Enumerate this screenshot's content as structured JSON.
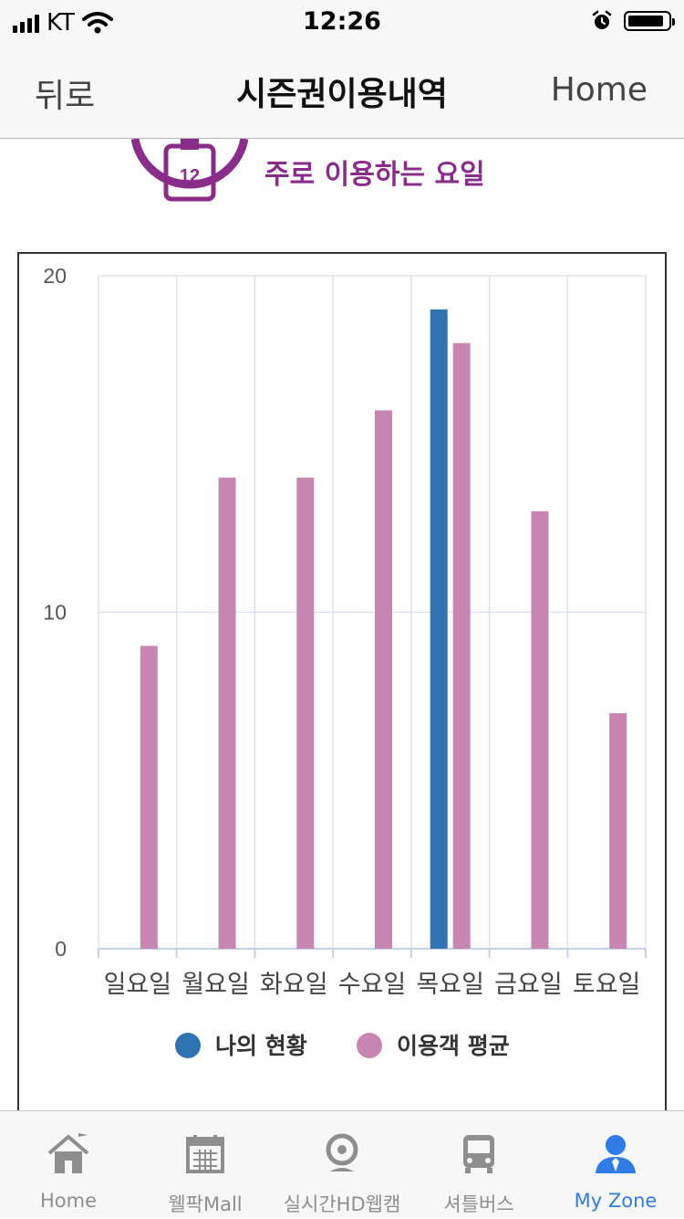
{
  "status_bar": {
    "carrier": "KT",
    "time": "12:26"
  },
  "nav": {
    "back": "뒤로",
    "title": "시즌권이용내역",
    "home": "Home"
  },
  "section": {
    "title": "주로 이용하는 요일",
    "calendar_day": "12",
    "accent_color": "#8a2c8a"
  },
  "chart_data": {
    "type": "bar",
    "categories": [
      "일요일",
      "월요일",
      "화요일",
      "수요일",
      "목요일",
      "금요일",
      "토요일"
    ],
    "series": [
      {
        "name": "나의 현황",
        "color": "#2f73b3",
        "values": [
          0,
          0,
          0,
          0,
          19,
          0,
          0
        ]
      },
      {
        "name": "이용객 평균",
        "color": "#c786b1",
        "values": [
          9,
          14,
          14,
          16,
          18,
          13,
          7
        ]
      }
    ],
    "yticks": [
      "20",
      "10",
      "0"
    ],
    "ylim": [
      0,
      20
    ],
    "grid": true,
    "legend_position": "bottom"
  },
  "tabbar": {
    "items": [
      {
        "label": "Home",
        "icon": "home-icon"
      },
      {
        "label": "웰팍Mall",
        "icon": "calendar-icon"
      },
      {
        "label": "실시간HD웹캠",
        "icon": "webcam-icon"
      },
      {
        "label": "셔틀버스",
        "icon": "bus-icon"
      },
      {
        "label": "My Zone",
        "icon": "user-icon",
        "active": true
      }
    ],
    "active_color": "#2f7ce8",
    "inactive_color": "#8e8e8e"
  }
}
